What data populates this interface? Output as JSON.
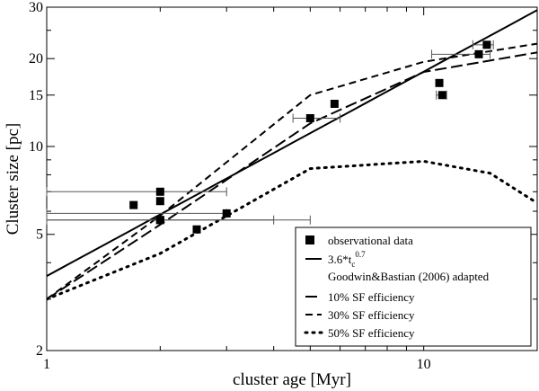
{
  "chart_data": {
    "type": "scatter",
    "title": "",
    "xlabel": "cluster age [Myr]",
    "ylabel": "Cluster size [pc]",
    "xscale": "log",
    "yscale": "log",
    "xlim": [
      1,
      20
    ],
    "ylim": [
      2,
      30
    ],
    "grid": false,
    "legend_position": "bottom-right",
    "x_ticks": [
      {
        "value": 1,
        "label": "1"
      },
      {
        "value": 10,
        "label": "10"
      }
    ],
    "y_ticks": [
      {
        "value": 2,
        "label": "2"
      },
      {
        "value": 5,
        "label": "5"
      },
      {
        "value": 10,
        "label": "10"
      },
      {
        "value": 15,
        "label": "15"
      },
      {
        "value": 20,
        "label": "20"
      },
      {
        "value": 30,
        "label": "30"
      }
    ],
    "observations": {
      "name": "observational data",
      "points": [
        {
          "x": 1.7,
          "y": 6.3,
          "xerr": null
        },
        {
          "x": 2.0,
          "y": 7.0,
          "xerr": [
            1.0,
            3.0
          ]
        },
        {
          "x": 2.0,
          "y": 6.5,
          "xerr": null
        },
        {
          "x": 2.0,
          "y": 5.6,
          "xerr": [
            1.0,
            5.0
          ]
        },
        {
          "x": 2.0,
          "y": 5.6,
          "xerr": [
            1.0,
            4.0
          ]
        },
        {
          "x": 2.5,
          "y": 5.2,
          "xerr": null
        },
        {
          "x": 3.0,
          "y": 5.9,
          "xerr": [
            1.0,
            3.0
          ]
        },
        {
          "x": 5.0,
          "y": 12.5,
          "xerr": [
            4.5,
            6.0
          ]
        },
        {
          "x": 5.8,
          "y": 14.0,
          "xerr": null
        },
        {
          "x": 11.0,
          "y": 16.5,
          "xerr": null
        },
        {
          "x": 11.2,
          "y": 15.0,
          "xerr": [
            10.8,
            11.5
          ]
        },
        {
          "x": 14.0,
          "y": 20.7,
          "xerr": [
            10.5,
            15.0
          ]
        },
        {
          "x": 14.7,
          "y": 22.3,
          "xerr": [
            13.5,
            15.3
          ]
        }
      ]
    },
    "fit": {
      "name_main": "3.6*t",
      "name_sub": "c",
      "name_sup": "0.7",
      "coefficient": 3.6,
      "exponent": 0.7
    },
    "model_heading": "Goodwin&Bastian (2006) adapted",
    "models": [
      {
        "name": "10% SF efficiency",
        "style": "long-dash",
        "x": [
          1,
          2,
          5,
          10,
          20
        ],
        "y": [
          3.0,
          5.4,
          12.0,
          18.0,
          21.0
        ]
      },
      {
        "name": "30% SF efficiency",
        "style": "dash",
        "x": [
          1,
          2,
          5,
          10,
          20
        ],
        "y": [
          3.0,
          5.8,
          15.0,
          19.5,
          22.5
        ]
      },
      {
        "name": "50% SF efficiency",
        "style": "dot",
        "x": [
          1,
          2,
          5,
          10,
          15,
          20
        ],
        "y": [
          3.0,
          4.3,
          8.4,
          8.9,
          8.1,
          6.4
        ]
      }
    ]
  }
}
